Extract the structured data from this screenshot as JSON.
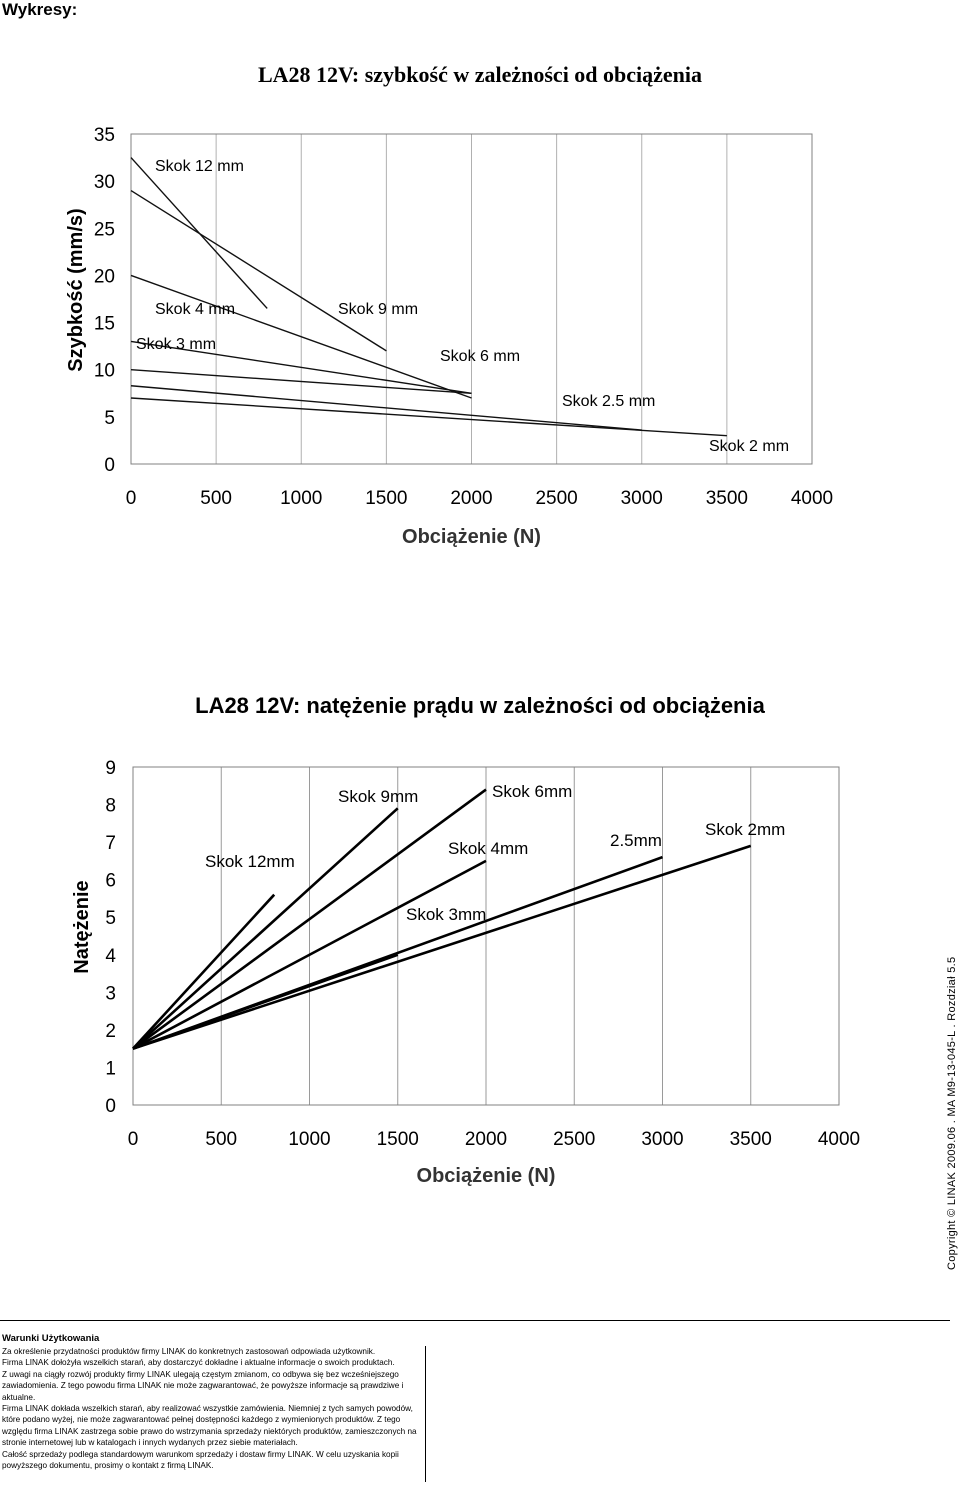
{
  "page": {
    "heading": "Wykresy:"
  },
  "chart_data": [
    {
      "type": "line",
      "title": "LA28 12V: szybkość w zależności od obciążenia",
      "xlabel": "Obciążenie (N)",
      "ylabel": "Szybkość (mm/s)",
      "xlim": [
        0,
        4000
      ],
      "ylim": [
        0,
        35
      ],
      "xticks": [
        "0",
        "500",
        "1000",
        "1500",
        "2000",
        "2500",
        "3000",
        "3500",
        "4000"
      ],
      "yticks": [
        "0",
        "5",
        "10",
        "15",
        "20",
        "25",
        "30",
        "35"
      ],
      "grid": "vertical",
      "series": [
        {
          "name": "Skok 12 mm",
          "x": [
            0,
            800
          ],
          "y": [
            32.5,
            16.5
          ]
        },
        {
          "name": "Skok 9 mm",
          "x": [
            0,
            1500
          ],
          "y": [
            29.0,
            12.0
          ]
        },
        {
          "name": "Skok 6 mm",
          "x": [
            0,
            2000
          ],
          "y": [
            20.0,
            7.0
          ]
        },
        {
          "name": "Skok 4 mm",
          "x": [
            0,
            2000
          ],
          "y": [
            13.0,
            7.5
          ]
        },
        {
          "name": "Skok 3 mm",
          "x": [
            0,
            2000
          ],
          "y": [
            10.0,
            7.5
          ]
        },
        {
          "name": "Skok 2.5 mm",
          "x": [
            0,
            3000
          ],
          "y": [
            8.3,
            3.6
          ]
        },
        {
          "name": "Skok 2 mm",
          "x": [
            0,
            3500
          ],
          "y": [
            7.0,
            3.0
          ]
        }
      ]
    },
    {
      "type": "line",
      "title": "LA28 12V: natężenie prądu w zależności od obciążenia",
      "xlabel": "Obciążenie (N)",
      "ylabel": "Natężenie",
      "xlim": [
        0,
        4000
      ],
      "ylim": [
        0,
        9
      ],
      "xticks": [
        "0",
        "500",
        "1000",
        "1500",
        "2000",
        "2500",
        "3000",
        "3500",
        "4000"
      ],
      "yticks": [
        "0",
        "1",
        "2",
        "3",
        "4",
        "5",
        "6",
        "7",
        "8",
        "9"
      ],
      "grid": "vertical",
      "series": [
        {
          "name": "Skok 12mm",
          "x": [
            0,
            800
          ],
          "y": [
            1.5,
            5.6
          ]
        },
        {
          "name": "Skok 9mm",
          "x": [
            0,
            1500
          ],
          "y": [
            1.5,
            7.9
          ]
        },
        {
          "name": "Skok 6mm",
          "x": [
            0,
            2000
          ],
          "y": [
            1.5,
            8.4
          ]
        },
        {
          "name": "Skok 4mm",
          "x": [
            0,
            2000
          ],
          "y": [
            1.5,
            6.5
          ]
        },
        {
          "name": "Skok 3mm",
          "x": [
            0,
            1500
          ],
          "y": [
            1.5,
            4.0
          ]
        },
        {
          "name": "2.5mm",
          "x": [
            0,
            3000
          ],
          "y": [
            1.5,
            6.6
          ]
        },
        {
          "name": "Skok 2mm",
          "x": [
            0,
            3500
          ],
          "y": [
            1.5,
            6.9
          ]
        }
      ]
    }
  ],
  "copyright": "Copyright © LINAK 2009.06 . MA M9-13-045-L . Rozdział 5.5",
  "terms": {
    "title": "Warunki Użytkowania",
    "paragraphs": [
      "Za określenie przydatności produktów firmy LINAK do konkretnych zastosowań odpowiada użytkownik.",
      "Firma LINAK dołożyła wszelkich starań, aby dostarczyć dokładne i aktualne informacje o swoich produktach.",
      "Z uwagi na ciągły rozwój produkty firmy LINAK ulegają częstym zmianom, co odbywa się bez wcześniejszego zawiadomienia. Z tego powodu firma LINAK nie może zagwarantować, że powyższe informacje są prawdziwe i aktualne.",
      "Firma LINAK dokłada wszelkich starań, aby realizować wszystkie zamówienia. Niemniej z tych samych powodów, które podano wyżej, nie może zagwarantować pełnej dostępności każdego z wymienionych produktów. Z tego względu firma LINAK zastrzega sobie prawo do wstrzymania sprzedaży niektórych produktów, zamieszczonych na stronie internetowej lub w katalogach i innych wydanych przez siebie materiałach.",
      "Całość sprzedaży podlega standardowym warunkom sprzedaży i dostaw firmy LINAK. W celu uzyskania kopii powyższego dokumentu, prosimy o kontakt z firmą LINAK."
    ]
  }
}
